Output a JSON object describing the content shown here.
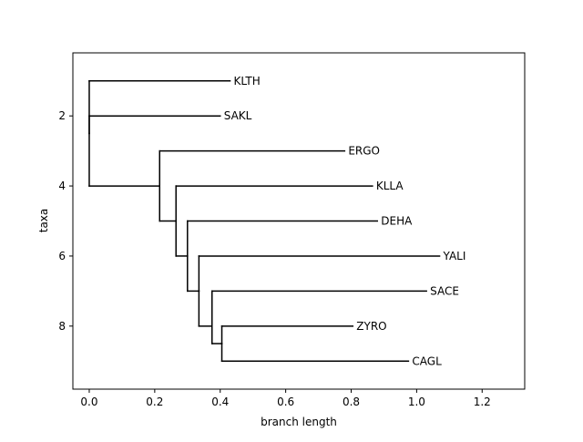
{
  "chart_data": {
    "type": "phylogenetic-tree",
    "title": "",
    "xlabel": "branch length",
    "ylabel": "taxa",
    "xlim": [
      -0.05,
      1.33
    ],
    "ylim": [
      9.8,
      0.2
    ],
    "x_ticks": [
      0.0,
      0.2,
      0.4,
      0.6,
      0.8,
      1.0,
      1.2
    ],
    "x_tick_labels": [
      "0.0",
      "0.2",
      "0.4",
      "0.6",
      "0.8",
      "1.0",
      "1.2"
    ],
    "y_ticks": [
      2,
      4,
      6,
      8
    ],
    "y_tick_labels": [
      "2",
      "4",
      "6",
      "8"
    ],
    "grid": false,
    "line_color": "#000000",
    "nodes": [
      {
        "id": "root",
        "x": 0.0,
        "y": 2.5
      },
      {
        "id": "n1",
        "x": 0.215,
        "y": 4.0
      },
      {
        "id": "n2",
        "x": 0.265,
        "y": 5.0
      },
      {
        "id": "n3",
        "x": 0.3,
        "y": 6.0
      },
      {
        "id": "n4",
        "x": 0.335,
        "y": 7.0
      },
      {
        "id": "n5",
        "x": 0.375,
        "y": 8.0
      },
      {
        "id": "n6",
        "x": 0.405,
        "y": 8.5
      }
    ],
    "taxa": [
      {
        "name": "KLTH",
        "y": 1,
        "x": 0.43
      },
      {
        "name": "SAKL",
        "y": 2,
        "x": 0.4
      },
      {
        "name": "ERGO",
        "y": 3,
        "x": 0.78
      },
      {
        "name": "KLLA",
        "y": 4,
        "x": 0.865
      },
      {
        "name": "DEHA",
        "y": 5,
        "x": 0.88
      },
      {
        "name": "YALI",
        "y": 6,
        "x": 1.07
      },
      {
        "name": "SACE",
        "y": 7,
        "x": 1.03
      },
      {
        "name": "ZYRO",
        "y": 8,
        "x": 0.805
      },
      {
        "name": "CAGL",
        "y": 9,
        "x": 0.975
      }
    ],
    "edges": [
      {
        "parent": "root",
        "child": "KLTH"
      },
      {
        "parent": "root",
        "child": "SAKL"
      },
      {
        "parent": "root",
        "child": "n1"
      },
      {
        "parent": "n1",
        "child": "ERGO"
      },
      {
        "parent": "n1",
        "child": "n2"
      },
      {
        "parent": "n2",
        "child": "KLLA"
      },
      {
        "parent": "n2",
        "child": "n3"
      },
      {
        "parent": "n3",
        "child": "DEHA"
      },
      {
        "parent": "n3",
        "child": "n4"
      },
      {
        "parent": "n4",
        "child": "YALI"
      },
      {
        "parent": "n4",
        "child": "n5"
      },
      {
        "parent": "n5",
        "child": "SACE"
      },
      {
        "parent": "n5",
        "child": "n6"
      },
      {
        "parent": "n6",
        "child": "ZYRO"
      },
      {
        "parent": "n6",
        "child": "CAGL"
      }
    ]
  }
}
